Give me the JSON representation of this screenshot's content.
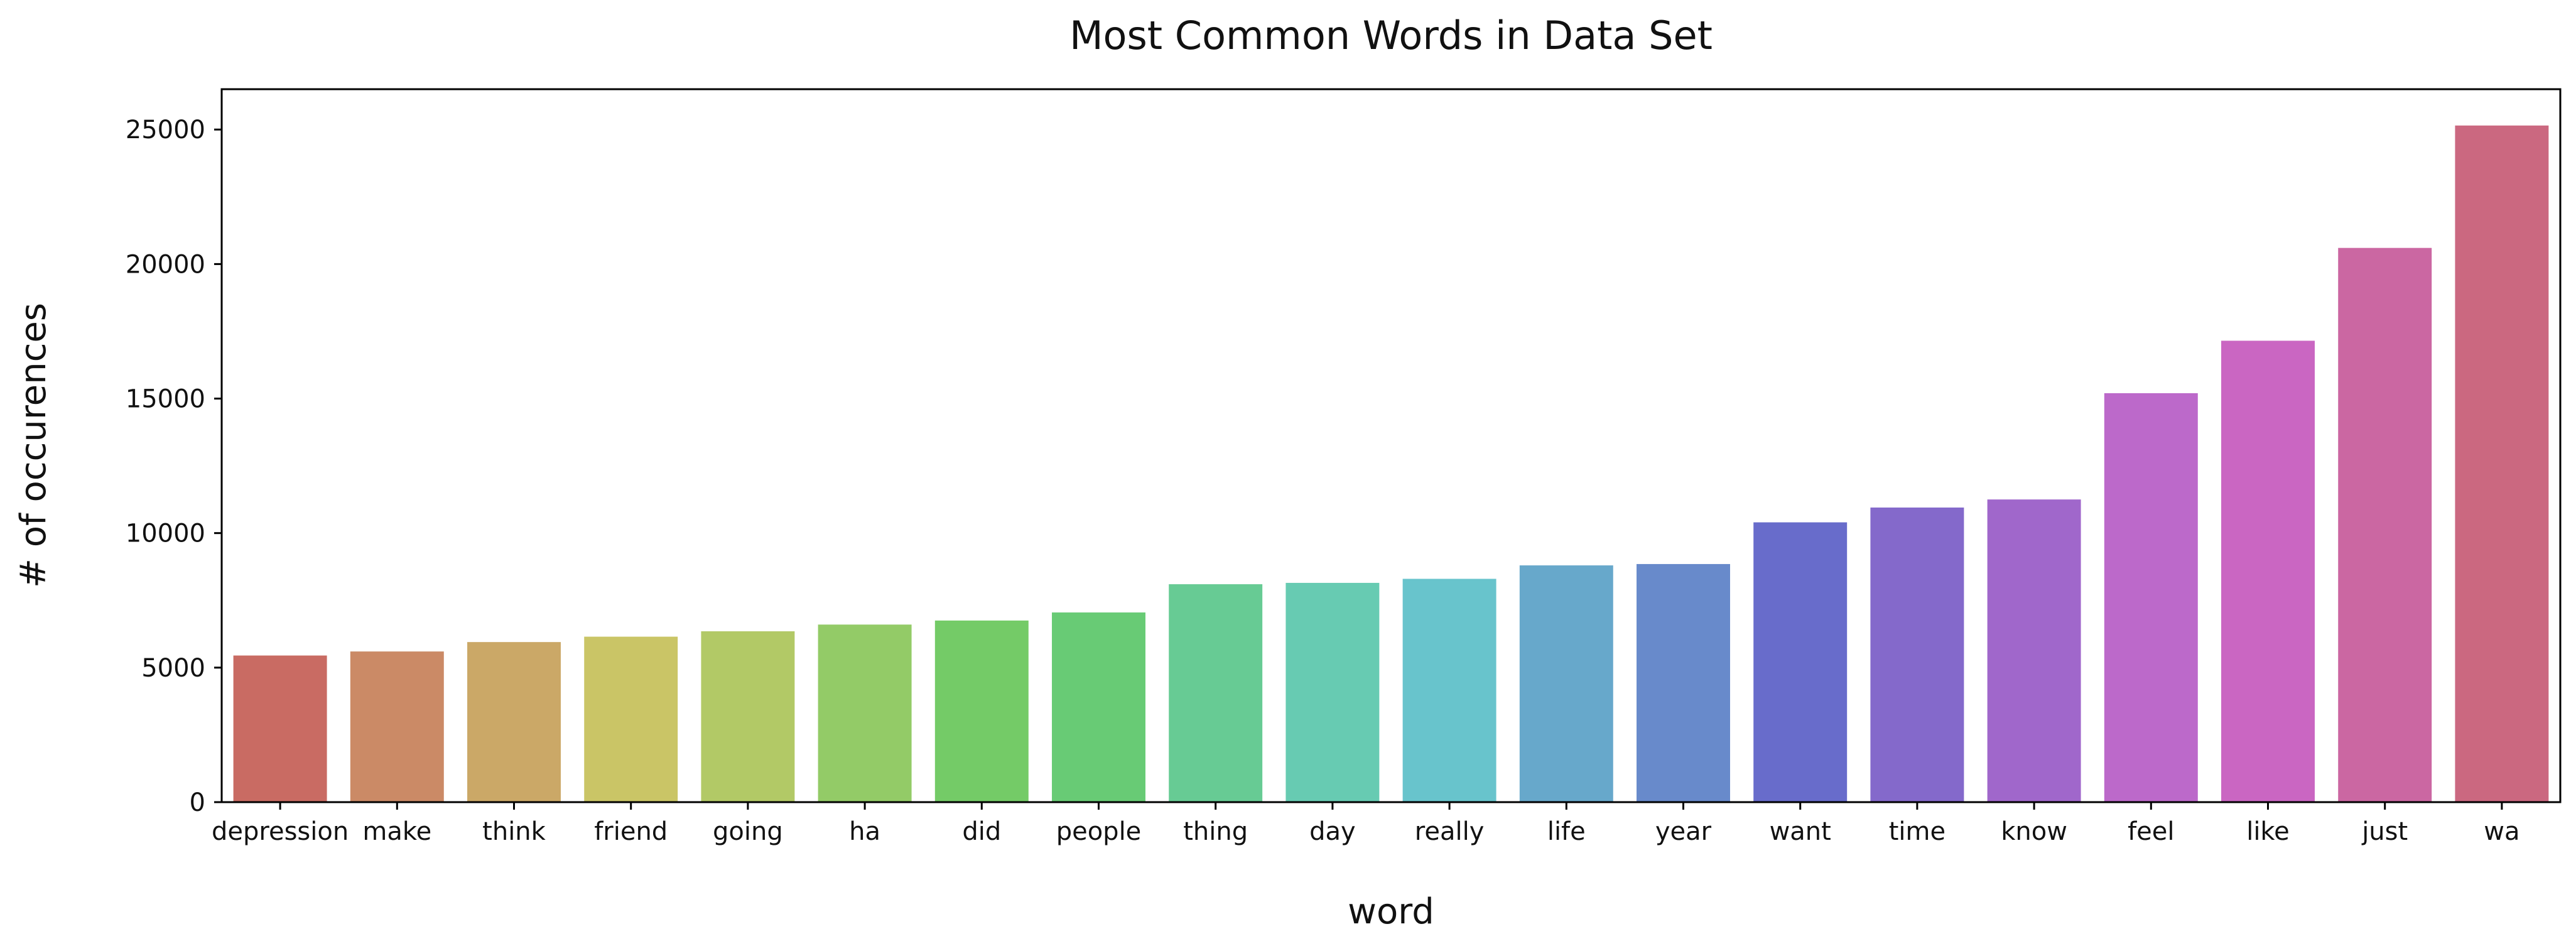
{
  "chart_data": {
    "type": "bar",
    "title": "Most Common Words in Data Set",
    "xlabel": "word",
    "ylabel": "# of occurences",
    "categories": [
      "depression",
      "make",
      "think",
      "friend",
      "going",
      "ha",
      "did",
      "people",
      "thing",
      "day",
      "really",
      "life",
      "year",
      "want",
      "time",
      "know",
      "feel",
      "like",
      "just",
      "wa"
    ],
    "values": [
      5450,
      5600,
      5950,
      6150,
      6350,
      6600,
      6750,
      7050,
      8100,
      8150,
      8300,
      8800,
      8850,
      10400,
      10950,
      11250,
      15200,
      17150,
      20600,
      25150
    ],
    "colors": [
      "#c96b63",
      "#cb8a66",
      "#cba867",
      "#cac566",
      "#b2c966",
      "#93cb67",
      "#74cb67",
      "#68cb75",
      "#67cb94",
      "#67cbb2",
      "#68c4cc",
      "#67a8cb",
      "#688acb",
      "#686ccb",
      "#8469cb",
      "#a067cb",
      "#bc69ca",
      "#ca66c2",
      "#cb67a2",
      "#cb6880"
    ],
    "ylim": [
      0,
      26500
    ],
    "yticks": [
      0,
      5000,
      10000,
      15000,
      20000,
      25000
    ],
    "grid": false,
    "legend": "none"
  }
}
